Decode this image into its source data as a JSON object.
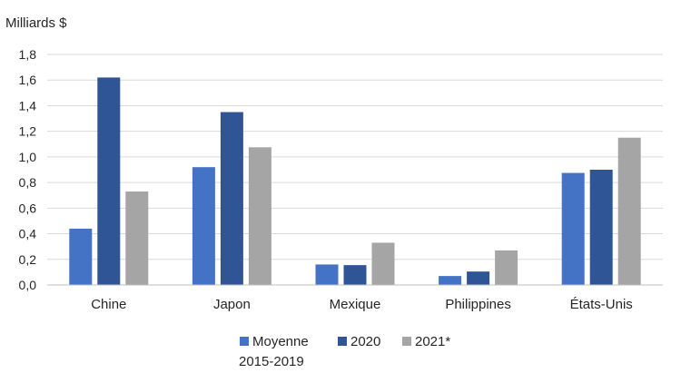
{
  "chart_data": {
    "type": "bar",
    "ylabel": "Milliards $",
    "ylim": [
      0,
      1.8
    ],
    "ytick_step": 0.2,
    "ytick_labels": [
      "0,0",
      "0,2",
      "0,4",
      "0,6",
      "0,8",
      "1,0",
      "1,2",
      "1,4",
      "1,6",
      "1,8"
    ],
    "grid": true,
    "legend_position": "bottom",
    "categories": [
      "Chine",
      "Japon",
      "Mexique",
      "Philippines",
      "États-Unis"
    ],
    "series": [
      {
        "name": "Moyenne 2015-2019",
        "legend_lines": [
          "Moyenne",
          "2015-2019"
        ],
        "color": "#4472c4",
        "values": [
          0.44,
          0.92,
          0.16,
          0.07,
          0.875
        ]
      },
      {
        "name": "2020",
        "legend_lines": [
          "2020"
        ],
        "color": "#2f5597",
        "values": [
          1.62,
          1.35,
          0.155,
          0.105,
          0.9
        ]
      },
      {
        "name": "2021*",
        "legend_lines": [
          "2021*"
        ],
        "color": "#a5a5a5",
        "values": [
          0.73,
          1.075,
          0.33,
          0.27,
          1.15
        ]
      }
    ]
  }
}
